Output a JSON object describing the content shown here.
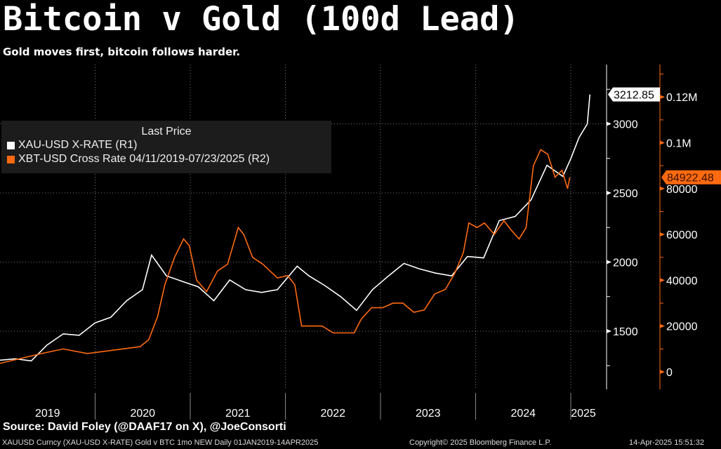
{
  "title": "Bitcoin v Gold (100d Lead)",
  "subtitle": "Gold moves first, bitcoin follows harder.",
  "source": "Source: David Foley (@DAAF17 on X), @JoeConsorti",
  "footer": {
    "left": "XAUUSD Curncy (XAU-USD X-RATE) Gold v BTC 1mo NEW  Daily 01JAN2019-14APR2025",
    "center": "Copyright© 2025 Bloomberg Finance L.P.",
    "right": "14-Apr-2025 15:51:32"
  },
  "colors": {
    "gold": "#ffffff",
    "btc": "#ff6a10",
    "background": "#000000",
    "legend_bg": "#1c1c1c"
  },
  "chart_data": {
    "type": "line",
    "title": "Bitcoin v Gold (100d Lead)",
    "legend": {
      "header": "Last Price",
      "placement": "top-left"
    },
    "x_ticks": [
      "2019",
      "2020",
      "2021",
      "2022",
      "2023",
      "2024",
      "2025"
    ],
    "xlim": [
      "2019-01-01",
      "2025-04-14"
    ],
    "grid": true,
    "axes": {
      "R1": {
        "ticks": [
          "1500",
          "2000",
          "2500",
          "3000"
        ],
        "tick_values": [
          1500,
          2000,
          2500,
          3000
        ],
        "ylim": [
          1150,
          3370
        ]
      },
      "R2": {
        "ticks": [
          "0",
          "20000",
          "40000",
          "60000",
          "80000",
          "0.1M",
          "0.12M"
        ],
        "tick_values": [
          0,
          20000,
          40000,
          60000,
          80000,
          100000,
          120000
        ],
        "ylim": [
          -7500,
          133000
        ]
      }
    },
    "series": [
      {
        "name": "XAU-USD X-RATE  (R1)",
        "axis": "R1",
        "color": "#ffffff",
        "last_label": "3212.85",
        "points": [
          [
            "2019-01-01",
            1290
          ],
          [
            "2019-03-01",
            1300
          ],
          [
            "2019-05-01",
            1285
          ],
          [
            "2019-07-01",
            1400
          ],
          [
            "2019-09-01",
            1480
          ],
          [
            "2019-11-01",
            1470
          ],
          [
            "2020-01-01",
            1560
          ],
          [
            "2020-03-01",
            1600
          ],
          [
            "2020-05-01",
            1720
          ],
          [
            "2020-07-01",
            1800
          ],
          [
            "2020-08-05",
            2050
          ],
          [
            "2020-10-01",
            1900
          ],
          [
            "2020-12-01",
            1860
          ],
          [
            "2021-02-01",
            1820
          ],
          [
            "2021-04-01",
            1720
          ],
          [
            "2021-06-01",
            1870
          ],
          [
            "2021-08-01",
            1800
          ],
          [
            "2021-10-01",
            1780
          ],
          [
            "2021-12-01",
            1800
          ],
          [
            "2022-02-15",
            1970
          ],
          [
            "2022-04-01",
            1900
          ],
          [
            "2022-06-01",
            1830
          ],
          [
            "2022-08-01",
            1750
          ],
          [
            "2022-10-01",
            1650
          ],
          [
            "2022-12-01",
            1800
          ],
          [
            "2023-02-01",
            1900
          ],
          [
            "2023-04-01",
            1990
          ],
          [
            "2023-06-01",
            1950
          ],
          [
            "2023-08-01",
            1920
          ],
          [
            "2023-10-01",
            1900
          ],
          [
            "2023-12-01",
            2040
          ],
          [
            "2024-02-01",
            2030
          ],
          [
            "2024-04-01",
            2300
          ],
          [
            "2024-06-01",
            2330
          ],
          [
            "2024-08-01",
            2450
          ],
          [
            "2024-10-01",
            2700
          ],
          [
            "2024-12-01",
            2620
          ],
          [
            "2025-01-01",
            2750
          ],
          [
            "2025-02-01",
            2900
          ],
          [
            "2025-03-05",
            3000
          ],
          [
            "2025-03-15",
            3212.85
          ]
        ]
      },
      {
        "name": "XBT-USD Cross Rate 04/11/2019-07/23/2025  (R2)",
        "axis": "R2",
        "color": "#ff6a10",
        "last_label": "84922.48",
        "points": [
          [
            "2019-01-01",
            3700
          ],
          [
            "2019-06-10",
            8000
          ],
          [
            "2019-09-01",
            10000
          ],
          [
            "2019-12-03",
            8000
          ],
          [
            "2020-02-10",
            9000
          ],
          [
            "2020-04-15",
            10000
          ],
          [
            "2020-06-22",
            11000
          ],
          [
            "2020-07-25",
            14000
          ],
          [
            "2020-08-28",
            24000
          ],
          [
            "2020-09-25",
            38000
          ],
          [
            "2020-11-01",
            50000
          ],
          [
            "2020-12-06",
            58000
          ],
          [
            "2020-12-28",
            55000
          ],
          [
            "2021-01-25",
            40000
          ],
          [
            "2021-03-04",
            35000
          ],
          [
            "2021-04-15",
            44000
          ],
          [
            "2021-05-24",
            47000
          ],
          [
            "2021-07-04",
            63000
          ],
          [
            "2021-07-25",
            60000
          ],
          [
            "2021-08-28",
            50000
          ],
          [
            "2021-10-06",
            47000
          ],
          [
            "2021-12-01",
            41000
          ],
          [
            "2022-01-10",
            42000
          ],
          [
            "2022-02-06",
            38000
          ],
          [
            "2022-03-04",
            20000
          ],
          [
            "2022-04-12",
            20000
          ],
          [
            "2022-05-22",
            20000
          ],
          [
            "2022-07-03",
            17000
          ],
          [
            "2022-08-12",
            17000
          ],
          [
            "2022-09-22",
            17000
          ],
          [
            "2022-10-19",
            23000
          ],
          [
            "2022-11-28",
            28000
          ],
          [
            "2023-01-09",
            28000
          ],
          [
            "2023-02-18",
            30000
          ],
          [
            "2023-03-28",
            30000
          ],
          [
            "2023-05-09",
            26000
          ],
          [
            "2023-06-18",
            27000
          ],
          [
            "2023-07-28",
            34000
          ],
          [
            "2023-09-07",
            36000
          ],
          [
            "2023-10-13",
            43000
          ],
          [
            "2023-11-15",
            52000
          ],
          [
            "2023-12-06",
            65000
          ],
          [
            "2024-01-07",
            63000
          ],
          [
            "2024-02-04",
            65000
          ],
          [
            "2024-03-13",
            60000
          ],
          [
            "2024-04-19",
            66000
          ],
          [
            "2024-05-16",
            62000
          ],
          [
            "2024-06-16",
            58000
          ],
          [
            "2024-07-13",
            63000
          ],
          [
            "2024-08-10",
            90000
          ],
          [
            "2024-09-07",
            97000
          ],
          [
            "2024-10-04",
            95000
          ],
          [
            "2024-11-01",
            85000
          ],
          [
            "2024-11-28",
            88000
          ],
          [
            "2024-12-19",
            80000
          ],
          [
            "2024-12-28",
            84922.48
          ]
        ]
      }
    ]
  }
}
